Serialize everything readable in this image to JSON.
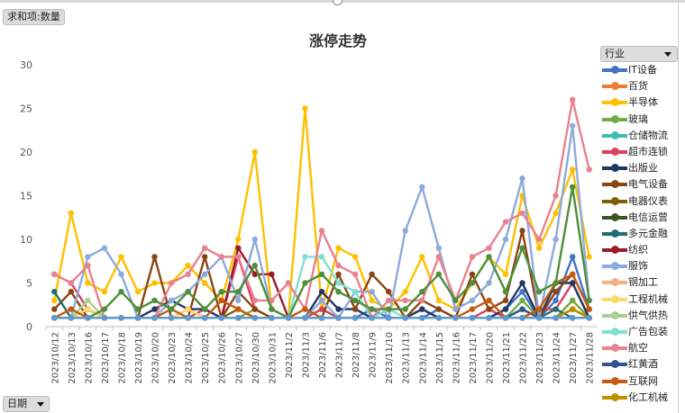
{
  "value_field": "求和项:数量",
  "series_field": "行业",
  "category_field": "日期",
  "chart_data": {
    "type": "line",
    "title": "涨停走势",
    "xlabel": "",
    "ylabel": "",
    "ylim": [
      0,
      30
    ],
    "yticks": [
      0,
      5,
      10,
      15,
      20,
      25,
      30
    ],
    "grid": false,
    "legend_position": "right",
    "categories": [
      "2023/10/12",
      "2023/10/13",
      "2023/10/16",
      "2023/10/17",
      "2023/10/18",
      "2023/10/19",
      "2023/10/20",
      "2023/10/23",
      "2023/10/24",
      "2023/10/25",
      "2023/10/26",
      "2023/10/27",
      "2023/10/30",
      "2023/10/31",
      "2023/11/2",
      "2023/11/3",
      "2023/11/6",
      "2023/11/7",
      "2023/11/8",
      "2023/11/9",
      "2023/11/10",
      "2023/11/13",
      "2023/11/14",
      "2023/11/15",
      "2023/11/16",
      "2023/11/17",
      "2023/11/20",
      "2023/11/21",
      "2023/11/22",
      "2023/11/23",
      "2023/11/24",
      "2023/11/27",
      "2023/11/28"
    ],
    "series": [
      {
        "name": "IT设备",
        "color": "#4472c4",
        "values": [
          1,
          1,
          1,
          1,
          1,
          1,
          1,
          1,
          2,
          1,
          1,
          1,
          1,
          1,
          1,
          1,
          2,
          1,
          1,
          2,
          1,
          1,
          1,
          2,
          1,
          1,
          1,
          2,
          4,
          1,
          3,
          8,
          2
        ]
      },
      {
        "name": "百货",
        "color": "#ed7d31",
        "values": [
          1,
          1,
          1,
          1,
          1,
          1,
          1,
          1,
          1,
          1,
          1,
          1,
          1,
          1,
          1,
          1,
          1,
          1,
          1,
          1,
          1,
          1,
          1,
          1,
          1,
          1,
          1,
          1,
          2,
          1,
          1,
          3,
          1
        ]
      },
      {
        "name": "半导体",
        "color": "#ffc000",
        "values": [
          3,
          13,
          5,
          4,
          8,
          4,
          5,
          5,
          7,
          5,
          3,
          10,
          20,
          2,
          1,
          25,
          2,
          9,
          8,
          3,
          2,
          4,
          8,
          3,
          2,
          5,
          8,
          6,
          15,
          9,
          13,
          18,
          8
        ]
      },
      {
        "name": "玻璃",
        "color": "#70ad47",
        "values": [
          1,
          1,
          1,
          1,
          1,
          1,
          1,
          1,
          1,
          1,
          1,
          1,
          2,
          1,
          1,
          1,
          1,
          1,
          1,
          1,
          1,
          1,
          1,
          1,
          1,
          1,
          1,
          1,
          3,
          1,
          1,
          3,
          1
        ]
      },
      {
        "name": "仓储物流",
        "color": "#3bbdb0",
        "values": [
          1,
          1,
          2,
          1,
          1,
          1,
          1,
          1,
          1,
          1,
          1,
          1,
          1,
          1,
          1,
          1,
          1,
          1,
          1,
          1,
          1,
          1,
          1,
          1,
          1,
          1,
          1,
          1,
          2,
          1,
          1,
          2,
          1
        ]
      },
      {
        "name": "超市连锁",
        "color": "#d9415c",
        "values": [
          6,
          5,
          2,
          1,
          1,
          1,
          1,
          1,
          1,
          2,
          1,
          8,
          2,
          1,
          1,
          1,
          2,
          1,
          1,
          1,
          1,
          1,
          2,
          1,
          1,
          1,
          2,
          1,
          1,
          2,
          2,
          5,
          1
        ]
      },
      {
        "name": "出版业",
        "color": "#203864",
        "values": [
          1,
          1,
          2,
          1,
          1,
          1,
          2,
          3,
          2,
          2,
          1,
          1,
          1,
          1,
          1,
          1,
          4,
          2,
          2,
          1,
          1,
          1,
          2,
          1,
          1,
          1,
          1,
          2,
          5,
          1,
          5,
          5,
          1
        ]
      },
      {
        "name": "电气设备",
        "color": "#8c4513",
        "values": [
          2,
          4,
          1,
          1,
          1,
          1,
          8,
          1,
          1,
          8,
          1,
          4,
          2,
          1,
          1,
          1,
          1,
          6,
          2,
          6,
          4,
          1,
          3,
          2,
          1,
          6,
          2,
          3,
          11,
          1,
          4,
          6,
          2
        ]
      },
      {
        "name": "电器仪表",
        "color": "#7f6000",
        "values": [
          1,
          1,
          1,
          1,
          1,
          1,
          1,
          1,
          1,
          1,
          1,
          2,
          1,
          1,
          1,
          1,
          1,
          1,
          1,
          1,
          1,
          1,
          1,
          1,
          1,
          1,
          1,
          1,
          2,
          1,
          1,
          2,
          1
        ]
      },
      {
        "name": "电信运营",
        "color": "#375623",
        "values": [
          1,
          1,
          1,
          1,
          1,
          1,
          1,
          1,
          1,
          1,
          1,
          1,
          1,
          1,
          1,
          1,
          1,
          1,
          1,
          1,
          1,
          1,
          1,
          1,
          1,
          1,
          1,
          1,
          1,
          1,
          1,
          1,
          1
        ]
      },
      {
        "name": "多元金融",
        "color": "#1f6f6f",
        "values": [
          4,
          1,
          1,
          1,
          1,
          1,
          1,
          1,
          1,
          1,
          1,
          1,
          1,
          1,
          1,
          1,
          1,
          1,
          1,
          1,
          1,
          1,
          1,
          1,
          1,
          1,
          1,
          1,
          1,
          1,
          2,
          1,
          1
        ]
      },
      {
        "name": "纺织",
        "color": "#9b1c2c",
        "values": [
          1,
          1,
          1,
          1,
          1,
          1,
          1,
          1,
          1,
          1,
          1,
          9,
          6,
          6,
          1,
          1,
          1,
          1,
          1,
          1,
          1,
          1,
          1,
          1,
          1,
          1,
          1,
          1,
          1,
          1,
          1,
          2,
          1
        ]
      },
      {
        "name": "服饰",
        "color": "#8eaadb",
        "values": [
          1,
          1,
          8,
          9,
          6,
          1,
          1,
          3,
          4,
          6,
          8,
          3,
          10,
          2,
          1,
          1,
          3,
          1,
          4,
          4,
          1,
          11,
          16,
          9,
          2,
          3,
          5,
          10,
          17,
          1,
          10,
          23,
          3
        ]
      },
      {
        "name": "钢加工",
        "color": "#f4b183",
        "values": [
          1,
          1,
          1,
          1,
          1,
          1,
          1,
          1,
          1,
          1,
          1,
          1,
          1,
          1,
          1,
          1,
          1,
          1,
          1,
          1,
          1,
          1,
          1,
          1,
          1,
          1,
          1,
          1,
          2,
          1,
          1,
          1,
          1
        ]
      },
      {
        "name": "工程机械",
        "color": "#ffd966",
        "values": [
          1,
          1,
          2,
          1,
          1,
          1,
          1,
          1,
          2,
          1,
          1,
          1,
          1,
          1,
          1,
          1,
          1,
          1,
          1,
          1,
          1,
          1,
          1,
          1,
          1,
          1,
          1,
          1,
          1,
          1,
          1,
          1,
          1
        ]
      },
      {
        "name": "供气供热",
        "color": "#a9d08e",
        "values": [
          1,
          1,
          3,
          1,
          1,
          1,
          1,
          1,
          1,
          1,
          1,
          1,
          1,
          1,
          1,
          1,
          1,
          1,
          1,
          1,
          1,
          1,
          1,
          1,
          1,
          1,
          1,
          1,
          1,
          1,
          1,
          1,
          1
        ]
      },
      {
        "name": "广告包装",
        "color": "#7ee0d3",
        "values": [
          1,
          1,
          1,
          1,
          1,
          1,
          1,
          1,
          1,
          1,
          1,
          1,
          1,
          1,
          1,
          8,
          8,
          5,
          4,
          1,
          2,
          1,
          1,
          1,
          1,
          1,
          1,
          1,
          1,
          1,
          1,
          1,
          1
        ]
      },
      {
        "name": "航空",
        "color": "#e8828f",
        "values": [
          6,
          5,
          7,
          1,
          1,
          1,
          1,
          5,
          6,
          9,
          8,
          8,
          3,
          3,
          5,
          2,
          11,
          7,
          6,
          1,
          3,
          3,
          3,
          8,
          3,
          8,
          9,
          12,
          13,
          10,
          15,
          26,
          18
        ]
      },
      {
        "name": "红黄酒",
        "color": "#2f5597",
        "values": [
          1,
          1,
          1,
          1,
          1,
          1,
          1,
          1,
          1,
          1,
          1,
          1,
          1,
          1,
          1,
          1,
          1,
          1,
          1,
          1,
          1,
          1,
          1,
          1,
          1,
          1,
          1,
          1,
          2,
          1,
          1,
          1,
          1
        ]
      },
      {
        "name": "互联网",
        "color": "#c55a11",
        "values": [
          1,
          2,
          1,
          1,
          1,
          1,
          1,
          2,
          1,
          1,
          3,
          2,
          1,
          1,
          1,
          2,
          1,
          1,
          1,
          1,
          1,
          1,
          1,
          1,
          1,
          2,
          3,
          1,
          1,
          2,
          5,
          6,
          2
        ]
      },
      {
        "name": "化工机械",
        "color": "#bf9000",
        "values": [
          1,
          1,
          1,
          1,
          1,
          1,
          1,
          1,
          1,
          1,
          1,
          1,
          1,
          1,
          1,
          1,
          1,
          1,
          1,
          1,
          1,
          1,
          1,
          1,
          1,
          1,
          1,
          1,
          1,
          1,
          1,
          2,
          1
        ]
      },
      {
        "name": "",
        "color": "#4e8f3a",
        "values": [
          1,
          1,
          1,
          2,
          4,
          2,
          3,
          2,
          4,
          2,
          4,
          4,
          7,
          2,
          1,
          5,
          6,
          4,
          3,
          2,
          2,
          2,
          4,
          6,
          3,
          5,
          8,
          4,
          9,
          4,
          5,
          16,
          3
        ]
      },
      {
        "name": "",
        "color": "#5b9bd5",
        "values": [
          1,
          1,
          1,
          1,
          1,
          1,
          1,
          1,
          1,
          1,
          1,
          1,
          1,
          1,
          1,
          1,
          1,
          1,
          1,
          1,
          1,
          1,
          1,
          1,
          1,
          1,
          1,
          1,
          1,
          1,
          1,
          1,
          1
        ]
      }
    ]
  }
}
